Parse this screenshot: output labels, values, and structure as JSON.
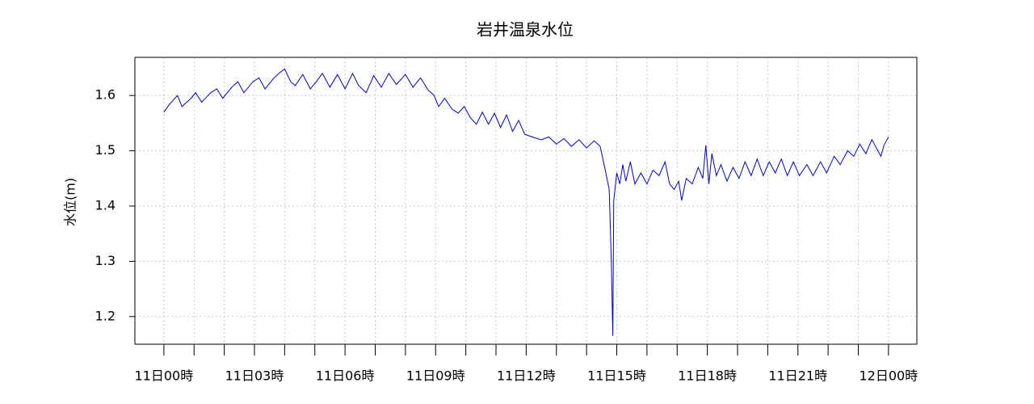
{
  "chart_data": {
    "type": "line",
    "title": "岩井温泉水位",
    "ylabel": "水位(m)",
    "color": "#0000cc",
    "grid": true,
    "xlim": [
      -0.96,
      24.94
    ],
    "ylim": [
      1.15,
      1.669
    ],
    "yticks": [
      1.2,
      1.3,
      1.4,
      1.5,
      1.6
    ],
    "xticks": [
      {
        "value": 0,
        "label": "11日00時"
      },
      {
        "value": 3,
        "label": "11日03時"
      },
      {
        "value": 6,
        "label": "11日06時"
      },
      {
        "value": 9,
        "label": "11日09時"
      },
      {
        "value": 12,
        "label": "11日12時"
      },
      {
        "value": 15,
        "label": "11日15時"
      },
      {
        "value": 18,
        "label": "11日18時"
      },
      {
        "value": 21,
        "label": "11日21時"
      },
      {
        "value": 24,
        "label": "12日00時"
      }
    ],
    "x_minor_ticks": [
      1,
      2,
      4,
      5,
      7,
      8,
      10,
      11,
      13,
      14,
      16,
      17,
      19,
      20,
      22,
      23
    ],
    "x": [
      0,
      0.2,
      0.45,
      0.6,
      0.9,
      1.05,
      1.25,
      1.55,
      1.75,
      1.95,
      2.25,
      2.45,
      2.65,
      2.95,
      3.15,
      3.35,
      3.65,
      3.85,
      4.0,
      4.2,
      4.35,
      4.6,
      4.85,
      5.05,
      5.25,
      5.5,
      5.75,
      6.0,
      6.25,
      6.45,
      6.7,
      6.95,
      7.2,
      7.45,
      7.7,
      8.0,
      8.25,
      8.5,
      8.75,
      8.95,
      9.1,
      9.3,
      9.55,
      9.75,
      9.95,
      10.15,
      10.35,
      10.55,
      10.75,
      10.95,
      11.15,
      11.35,
      11.55,
      11.75,
      11.95,
      12.2,
      12.5,
      12.75,
      13.0,
      13.25,
      13.5,
      13.75,
      14.0,
      14.25,
      14.45,
      14.6,
      14.75,
      14.82,
      14.87,
      14.9,
      15.0,
      15.1,
      15.2,
      15.3,
      15.45,
      15.6,
      15.8,
      16.0,
      16.2,
      16.4,
      16.6,
      16.75,
      16.9,
      17.05,
      17.15,
      17.3,
      17.5,
      17.7,
      17.85,
      17.95,
      18.05,
      18.15,
      18.3,
      18.45,
      18.65,
      18.85,
      19.05,
      19.25,
      19.45,
      19.65,
      19.85,
      20.05,
      20.25,
      20.45,
      20.65,
      20.85,
      21.05,
      21.3,
      21.5,
      21.75,
      21.95,
      22.2,
      22.4,
      22.65,
      22.85,
      23.05,
      23.25,
      23.45,
      23.6,
      23.75,
      23.85,
      24.0
    ],
    "values": [
      1.57,
      1.585,
      1.6,
      1.58,
      1.595,
      1.605,
      1.588,
      1.605,
      1.612,
      1.595,
      1.615,
      1.625,
      1.605,
      1.625,
      1.632,
      1.612,
      1.632,
      1.642,
      1.648,
      1.625,
      1.618,
      1.638,
      1.612,
      1.625,
      1.64,
      1.615,
      1.638,
      1.612,
      1.64,
      1.618,
      1.605,
      1.636,
      1.615,
      1.64,
      1.62,
      1.638,
      1.615,
      1.632,
      1.61,
      1.6,
      1.58,
      1.595,
      1.575,
      1.568,
      1.58,
      1.56,
      1.548,
      1.57,
      1.548,
      1.568,
      1.542,
      1.565,
      1.535,
      1.555,
      1.53,
      1.525,
      1.52,
      1.525,
      1.512,
      1.522,
      1.508,
      1.52,
      1.505,
      1.518,
      1.508,
      1.47,
      1.43,
      1.3,
      1.165,
      1.41,
      1.46,
      1.44,
      1.475,
      1.445,
      1.48,
      1.44,
      1.46,
      1.44,
      1.465,
      1.455,
      1.48,
      1.44,
      1.43,
      1.445,
      1.41,
      1.45,
      1.44,
      1.47,
      1.45,
      1.51,
      1.44,
      1.495,
      1.455,
      1.475,
      1.445,
      1.47,
      1.45,
      1.48,
      1.455,
      1.485,
      1.455,
      1.48,
      1.46,
      1.485,
      1.455,
      1.48,
      1.455,
      1.475,
      1.455,
      1.48,
      1.46,
      1.49,
      1.475,
      1.5,
      1.49,
      1.512,
      1.495,
      1.52,
      1.505,
      1.49,
      1.51,
      1.525
    ]
  }
}
